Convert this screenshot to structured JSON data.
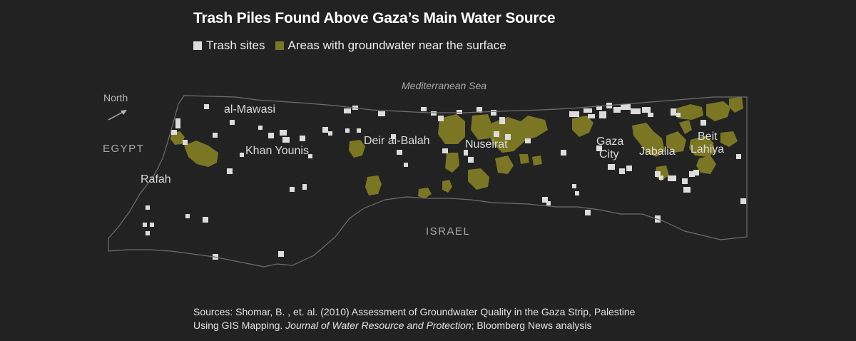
{
  "title": "Trash Piles Found Above Gaza’s Main Water Source",
  "legend": {
    "trash_label": "Trash sites",
    "water_label": "Areas with groundwater near the surface"
  },
  "colors": {
    "background": "#222222",
    "trash": "#dcdcdc",
    "groundwater": "#7b7623",
    "border": "#6e6e6e"
  },
  "map_labels": {
    "sea": "Mediterranean Sea",
    "north": "North",
    "egypt": "EGYPT",
    "israel": "ISRAEL",
    "rafah": "Rafah",
    "al_mawasi": "al-Mawasi",
    "khan_younis": "Khan Younis",
    "deir_al_balah": "Deir al-Balah",
    "nuseirat": "Nuseirat",
    "gaza_line1": "Gaza",
    "gaza_line2": "City",
    "jabalia": "Jabalia",
    "beit_line1": "Beit",
    "beit_line2": "Lahiya"
  },
  "sources": {
    "line1": "Sources: Shomar, B. , et. al. (2010) Assessment of Groundwater Quality in the Gaza Strip, Palestine",
    "line2_prefix": "Using GIS Mapping. ",
    "line2_journal": "Journal of Water Resource and Protection",
    "line2_suffix": "; Bloomberg News analysis"
  }
}
